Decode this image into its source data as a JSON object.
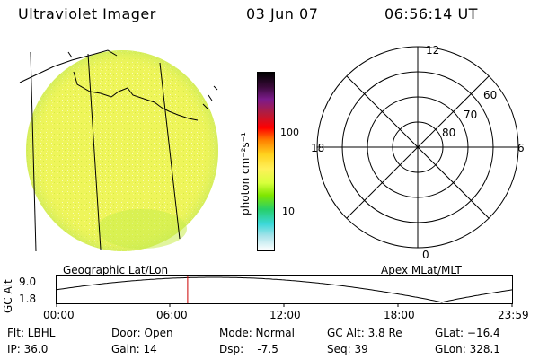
{
  "header": {
    "title": "Ultraviolet Imager",
    "date": "03 Jun 07",
    "time": "06:56:14 UT"
  },
  "earth_image": {
    "fill_color": "#eef55a",
    "grid_color": "#000000"
  },
  "colorbar": {
    "unit_label": "photon cm⁻²s⁻¹",
    "ticks": [
      "100",
      "10"
    ],
    "colors": [
      "#000000",
      "#3a0a3a",
      "#7b1b8b",
      "#b41c3c",
      "#ff0000",
      "#ff7f00",
      "#ffd21e",
      "#fff05a",
      "#d8ff3c",
      "#7fe600",
      "#26cf6b",
      "#3bd8d8",
      "#a9e3ea",
      "#ffffff"
    ]
  },
  "polar_plot": {
    "mlt_labels": {
      "top": "12",
      "left": "18",
      "right": "6",
      "bottom": "0"
    },
    "lat_labels": [
      "60",
      "70",
      "80"
    ]
  },
  "altitude_panel": {
    "y_label": "GC Alt",
    "y_ticks": [
      "9.0",
      "1.8"
    ],
    "left_title": "Geographic Lat/Lon",
    "right_title": "Apex MLat/MLT",
    "x_ticks": [
      "00:00",
      "06:00",
      "12:00",
      "18:00",
      "23:59"
    ],
    "marker_time_hours": 6.94,
    "marker_color": "#cc0000"
  },
  "footer": {
    "filter": "Flt: LBHL",
    "ip": "IP: 36.0",
    "door": "Door: Open",
    "gain": "Gain: 14",
    "mode": "Mode: Normal",
    "dsp": "Dsp:    -7.5",
    "gc_alt": "GC Alt: 3.8 Re",
    "seq": "Seq: 39",
    "glat": "GLat: −16.4",
    "glon": "GLon: 328.1"
  }
}
